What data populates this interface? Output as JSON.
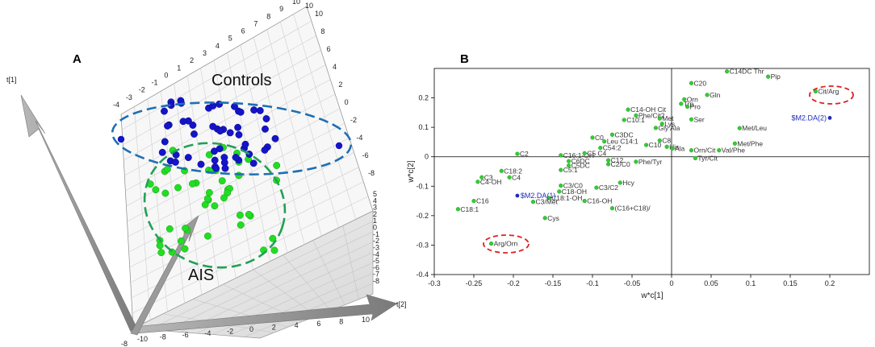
{
  "panels": {
    "a": "A",
    "b": "B"
  },
  "chart_data": [
    {
      "type": "scatter",
      "subtype": "3d-scores",
      "title": "",
      "axes": {
        "t1": "t[1]",
        "t2": "t[2]"
      },
      "ticks": {
        "top": [
          "-4",
          "-3",
          "-2",
          "-1",
          "0",
          "1",
          "2",
          "3",
          "4",
          "5",
          "6",
          "7",
          "8",
          "9",
          "10"
        ],
        "right_top": [
          "10",
          "8",
          "6",
          "4",
          "2",
          "0",
          "-2",
          "-4",
          "-6",
          "-8"
        ],
        "right_bottom": [
          "5",
          "4",
          "3",
          "2",
          "1",
          "0",
          "-1",
          "-2",
          "-3",
          "-4",
          "-5",
          "-6",
          "-7",
          "-8"
        ],
        "bottom": [
          "-10",
          "-8",
          "-6",
          "-4",
          "-2",
          "0",
          "2",
          "4",
          "6",
          "8",
          "10"
        ],
        "corner_top": "10",
        "corner_bottom": "-8"
      },
      "groups": [
        {
          "name": "Controls",
          "color": "#1414c8",
          "ellipse_color": "#1e6fb4",
          "n_points": 52
        },
        {
          "name": "AIS",
          "color": "#22dd22",
          "ellipse_color": "#22a055",
          "n_points": 48
        }
      ]
    },
    {
      "type": "scatter",
      "subtype": "loadings",
      "title": "",
      "xlabel": "w*c[1]",
      "ylabel": "w*c[2]",
      "xlim": [
        -0.3,
        0.25
      ],
      "ylim": [
        -0.4,
        0.3
      ],
      "xticks": [
        "-0.3",
        "-0.25",
        "-0.2",
        "-0.15",
        "-0.1",
        "-0.05",
        "0",
        "0.05",
        "0.1",
        "0.15",
        "0.2"
      ],
      "yticks": [
        "0.2",
        "0.1",
        "0",
        "-0.1",
        "-0.2",
        "-0.3",
        "-0.4"
      ],
      "point_color": "#33cc33",
      "y_var_color": "#1e2db8",
      "highlight_color": "#dd2222",
      "highlighted": [
        "Cit/Arg",
        "Arg/Orn"
      ],
      "points": [
        {
          "label": "Pip",
          "x": 0.122,
          "y": 0.272
        },
        {
          "label": "C14DC Thr",
          "x": 0.07,
          "y": 0.29
        },
        {
          "label": "C20",
          "x": 0.025,
          "y": 0.25
        },
        {
          "label": "Cit/Arg",
          "x": 0.182,
          "y": 0.222
        },
        {
          "label": "Gln",
          "x": 0.045,
          "y": 0.21
        },
        {
          "label": "Orn",
          "x": 0.016,
          "y": 0.195
        },
        {
          "label": "Trp",
          "x": 0.012,
          "y": 0.18
        },
        {
          "label": "Pro",
          "x": 0.02,
          "y": 0.17
        },
        {
          "label": "C14-OH Cit",
          "x": -0.055,
          "y": 0.16
        },
        {
          "label": "Phe/Cit2",
          "x": -0.045,
          "y": 0.14
        },
        {
          "label": "C10:1",
          "x": -0.06,
          "y": 0.125
        },
        {
          "label": "Met",
          "x": -0.015,
          "y": 0.13
        },
        {
          "label": "Ser",
          "x": 0.025,
          "y": 0.127
        },
        {
          "label": "Lys",
          "x": -0.012,
          "y": 0.112
        },
        {
          "label": "Gly Ala",
          "x": -0.02,
          "y": 0.098
        },
        {
          "label": "Met/Leu",
          "x": 0.086,
          "y": 0.097
        },
        {
          "label": "C3DC",
          "x": -0.075,
          "y": 0.075
        },
        {
          "label": "C0",
          "x": -0.1,
          "y": 0.065
        },
        {
          "label": "Leu C14:1",
          "x": -0.085,
          "y": 0.052
        },
        {
          "label": "C8",
          "x": -0.015,
          "y": 0.055
        },
        {
          "label": "C10",
          "x": -0.032,
          "y": 0.04
        },
        {
          "label": "His",
          "x": -0.006,
          "y": 0.034
        },
        {
          "label": "Ala",
          "x": 0.001,
          "y": 0.028
        },
        {
          "label": "Met/Phe",
          "x": 0.08,
          "y": 0.045
        },
        {
          "label": "C54:2",
          "x": -0.09,
          "y": 0.03
        },
        {
          "label": "Orn/Cit",
          "x": 0.025,
          "y": 0.022
        },
        {
          "label": "Val/Phe",
          "x": 0.06,
          "y": 0.022
        },
        {
          "label": "C16:1-OH",
          "x": -0.14,
          "y": 0.005
        },
        {
          "label": "C5 C4",
          "x": -0.11,
          "y": 0.012
        },
        {
          "label": "C2",
          "x": -0.195,
          "y": 0.01
        },
        {
          "label": "Tyr/Cit",
          "x": 0.03,
          "y": -0.005
        },
        {
          "label": "C6DC",
          "x": -0.13,
          "y": -0.015
        },
        {
          "label": "C12",
          "x": -0.08,
          "y": -0.012
        },
        {
          "label": "C2/C0",
          "x": -0.08,
          "y": -0.025
        },
        {
          "label": "Phe/Tyr",
          "x": -0.045,
          "y": -0.017
        },
        {
          "label": "C5DC",
          "x": -0.13,
          "y": -0.03
        },
        {
          "label": "C5:1",
          "x": -0.14,
          "y": -0.045
        },
        {
          "label": "C18:2",
          "x": -0.215,
          "y": -0.048
        },
        {
          "label": "C3",
          "x": -0.24,
          "y": -0.07
        },
        {
          "label": "C4",
          "x": -0.205,
          "y": -0.07
        },
        {
          "label": "C4-OH",
          "x": -0.245,
          "y": -0.085
        },
        {
          "label": "Hcy",
          "x": -0.065,
          "y": -0.088
        },
        {
          "label": "C3/C0",
          "x": -0.14,
          "y": -0.098
        },
        {
          "label": "C3/C2",
          "x": -0.095,
          "y": -0.105
        },
        {
          "label": "C18-OH",
          "x": -0.142,
          "y": -0.118
        },
        {
          "label": "C18:1-OH",
          "x": -0.155,
          "y": -0.14
        },
        {
          "label": "C3/Met",
          "x": -0.175,
          "y": -0.153
        },
        {
          "label": "C16-OH",
          "x": -0.11,
          "y": -0.15
        },
        {
          "label": "C16",
          "x": -0.25,
          "y": -0.15
        },
        {
          "label": "C18:1",
          "x": -0.27,
          "y": -0.178
        },
        {
          "label": "(C16+C18)/",
          "x": -0.075,
          "y": -0.175
        },
        {
          "label": "Cys",
          "x": -0.16,
          "y": -0.208
        },
        {
          "label": "Arg/Orn",
          "x": -0.228,
          "y": -0.295
        }
      ],
      "y_variables": [
        {
          "label": "$M2.DA(2)",
          "x": 0.2,
          "y": 0.132,
          "label_side": "left"
        },
        {
          "label": "$M2.DA(1)",
          "x": -0.195,
          "y": -0.132,
          "label_side": "right"
        }
      ]
    }
  ]
}
